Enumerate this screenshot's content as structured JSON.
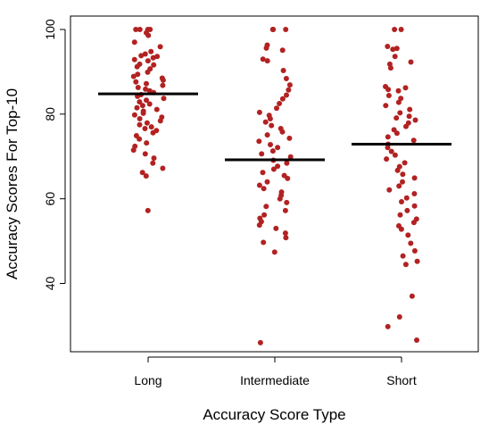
{
  "chart_data": {
    "type": "scatter",
    "subtype": "jittered strip chart with mean lines",
    "title": "",
    "xlabel": "Accuracy Score Type",
    "ylabel": "Accuracy Scores For Top-10",
    "categories": [
      "Long",
      "Intermediate",
      "Short"
    ],
    "ylim": [
      23,
      103
    ],
    "yticks": [
      40,
      60,
      80,
      100
    ],
    "grid": false,
    "legend": "none",
    "point_color": "#b22222",
    "mean_line_color": "#000000",
    "series": [
      {
        "category": "Long",
        "mean": 84.8,
        "values": [
          100,
          100,
          100,
          100,
          99.2,
          98.6,
          97.0,
          95.9,
          94.8,
          94.2,
          93.8,
          93.6,
          93.3,
          92.9,
          92.6,
          91.8,
          91.6,
          91.2,
          90.7,
          89.9,
          89.4,
          88.9,
          88.5,
          88.0,
          87.6,
          87.2,
          86.8,
          86.3,
          85.9,
          85.5,
          85.1,
          84.6,
          84.2,
          83.7,
          83.3,
          82.9,
          82.4,
          82.0,
          81.5,
          81.1,
          80.7,
          80.2,
          79.8,
          79.3,
          78.9,
          78.4,
          77.9,
          77.5,
          77.0,
          76.6,
          76.1,
          75.6,
          74.9,
          74.1,
          73.2,
          72.4,
          71.5,
          70.6,
          69.6,
          68.4,
          67.2,
          66.2,
          65.4,
          57.2
        ]
      },
      {
        "category": "Intermediate",
        "mean": 69.2,
        "values": [
          100,
          100,
          100,
          100,
          96.3,
          95.6,
          95.1,
          93.0,
          92.6,
          90.3,
          88.4,
          86.9,
          85.7,
          84.5,
          83.6,
          82.5,
          81.4,
          80.4,
          79.7,
          78.9,
          78.1,
          77.3,
          76.6,
          75.8,
          75.1,
          74.3,
          73.6,
          72.8,
          72.1,
          71.3,
          70.6,
          69.9,
          69.1,
          68.4,
          67.7,
          67.0,
          66.2,
          65.5,
          64.8,
          64.0,
          63.2,
          62.4,
          61.6,
          60.8,
          60.0,
          59.1,
          58.2,
          57.2,
          56.2,
          55.4,
          54.6,
          53.8,
          53.0,
          51.9,
          50.8,
          49.7,
          47.4,
          26.0
        ]
      },
      {
        "category": "Short",
        "mean": 72.9,
        "values": [
          100,
          100,
          96.0,
          95.5,
          95.3,
          93.6,
          92.3,
          91.8,
          90.9,
          86.5,
          86.2,
          85.8,
          85.5,
          84.4,
          83.7,
          82.8,
          82.0,
          81.1,
          80.3,
          79.5,
          79.1,
          78.6,
          77.9,
          77.1,
          76.3,
          75.5,
          74.6,
          73.8,
          72.9,
          72.1,
          71.2,
          70.3,
          69.4,
          68.5,
          67.6,
          66.7,
          65.8,
          64.9,
          64.0,
          63.0,
          62.1,
          61.2,
          60.2,
          59.3,
          58.3,
          57.2,
          56.2,
          55.2,
          54.4,
          53.6,
          52.8,
          51.4,
          49.5,
          47.7,
          46.5,
          45.2,
          44.5,
          37.0,
          32.1,
          29.8,
          26.6
        ]
      }
    ]
  }
}
